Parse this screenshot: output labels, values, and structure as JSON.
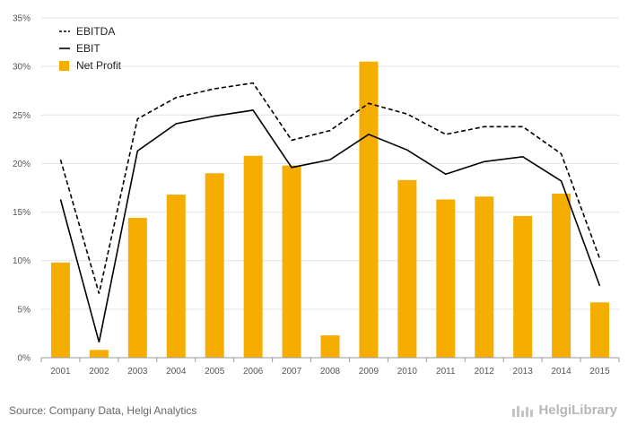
{
  "chart_data": {
    "type": "bar",
    "categories": [
      "2001",
      "2002",
      "2003",
      "2004",
      "2005",
      "2006",
      "2007",
      "2008",
      "2009",
      "2010",
      "2011",
      "2012",
      "2013",
      "2014",
      "2015"
    ],
    "series": [
      {
        "name": "EBITDA",
        "type": "line",
        "style": "dashed",
        "color": "#000000",
        "values": [
          20.4,
          6.6,
          24.6,
          26.8,
          27.7,
          28.3,
          22.4,
          23.4,
          26.2,
          25.1,
          23.0,
          23.8,
          23.8,
          21.0,
          10.2
        ]
      },
      {
        "name": "EBIT",
        "type": "line",
        "style": "solid",
        "color": "#000000",
        "values": [
          16.3,
          1.6,
          21.3,
          24.1,
          24.9,
          25.5,
          19.6,
          20.4,
          23.0,
          21.4,
          18.9,
          20.2,
          20.7,
          18.2,
          7.4
        ]
      },
      {
        "name": "Net Profit",
        "type": "bar",
        "color": "#f5ad00",
        "values": [
          9.8,
          0.8,
          14.4,
          16.8,
          19.0,
          20.8,
          19.8,
          2.3,
          30.5,
          18.3,
          16.3,
          16.6,
          14.6,
          16.9,
          5.7
        ]
      }
    ],
    "yticks": [
      "0%",
      "5%",
      "10%",
      "15%",
      "20%",
      "25%",
      "30%",
      "35%"
    ],
    "ylim": [
      0,
      35
    ],
    "grid": true,
    "legend": "top-left"
  },
  "footer": {
    "source": "Source: Company Data, Helgi Analytics",
    "brand": "HelgiLibrary"
  }
}
